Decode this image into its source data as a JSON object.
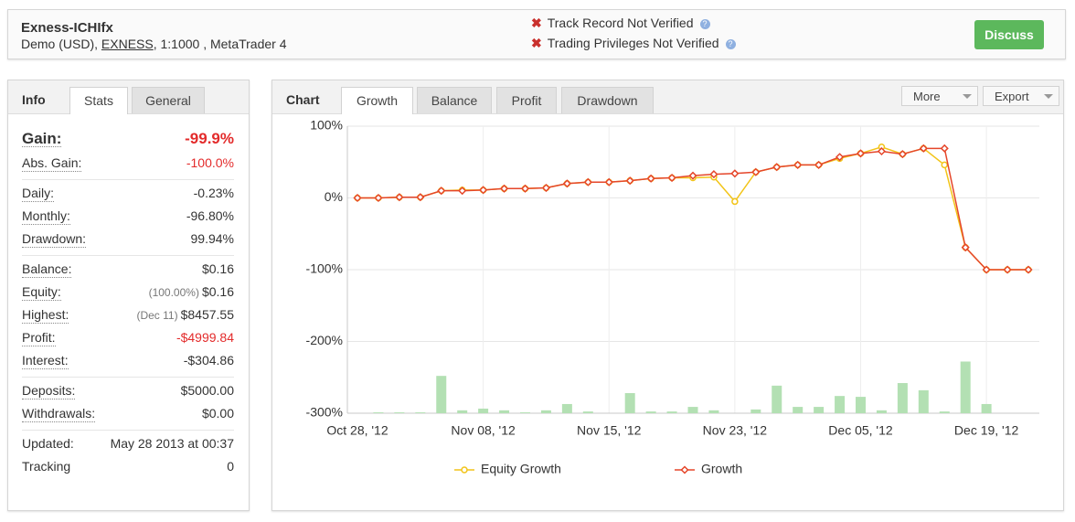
{
  "header": {
    "title": "Exness-ICHIfx",
    "subtitle_prefix": "Demo (USD),",
    "broker": "EXNESS",
    "subtitle_suffix": ", 1:1000 , MetaTrader 4",
    "verification": [
      "Track Record Not Verified",
      "Trading Privileges Not Verified"
    ],
    "button": "Discuss"
  },
  "info_panel": {
    "tabs": [
      "Info",
      "Stats",
      "General"
    ],
    "groups": [
      {
        "dotted": true,
        "rows": [
          {
            "label": "Gain:",
            "value": "-99.9%",
            "color": "#e32b2b",
            "emphasis": true
          },
          {
            "label": "Abs. Gain:",
            "value": "-100.0%",
            "color": "#e32b2b"
          }
        ]
      },
      {
        "dotted": true,
        "rows": [
          {
            "label": "Daily:",
            "value": "-0.23%"
          },
          {
            "label": "Monthly:",
            "value": "-96.80%"
          },
          {
            "label": "Drawdown:",
            "value": "99.94%"
          }
        ]
      },
      {
        "dotted": true,
        "rows": [
          {
            "label": "Balance:",
            "value": "$0.16"
          },
          {
            "label": "Equity:",
            "note": "(100.00%)",
            "value": "$0.16"
          },
          {
            "label": "Highest:",
            "note": "(Dec 11)",
            "value": "$8457.55"
          },
          {
            "label": "Profit:",
            "value": "-$4999.84",
            "color": "#e32b2b"
          },
          {
            "label": "Interest:",
            "value": "-$304.86"
          }
        ]
      },
      {
        "dotted": true,
        "rows": [
          {
            "label": "Deposits:",
            "value": "$5000.00"
          },
          {
            "label": "Withdrawals:",
            "value": "$0.00"
          }
        ]
      },
      {
        "dotted": false,
        "rows": [
          {
            "label": "Updated:",
            "value": "May 28 2013 at 00:37"
          },
          {
            "label": "Tracking",
            "value": "0"
          }
        ]
      }
    ]
  },
  "chart_panel": {
    "tabs": [
      "Chart",
      "Growth",
      "Balance",
      "Profit",
      "Drawdown"
    ],
    "menus": [
      "More",
      "Export"
    ]
  },
  "chart_data": {
    "type": "line",
    "categories": [
      "Oct 28, '12",
      null,
      null,
      null,
      null,
      null,
      "Nov 08, '12",
      null,
      null,
      null,
      null,
      null,
      "Nov 15, '12",
      null,
      null,
      null,
      null,
      null,
      "Nov 23, '12",
      null,
      null,
      null,
      null,
      null,
      "Dec 05, '12",
      null,
      null,
      null,
      null,
      null,
      "Dec 19, '12",
      null,
      null
    ],
    "series": [
      {
        "name": "Equity Growth",
        "color": "#f2c418",
        "marker": "circle",
        "values": [
          0,
          0,
          1,
          1,
          10,
          11,
          11,
          13,
          13,
          14,
          20,
          22,
          22,
          24,
          27,
          28,
          28,
          29,
          -5,
          36,
          43,
          46,
          46,
          55,
          62,
          71,
          61,
          69,
          46,
          -69,
          -100,
          -100,
          -100
        ]
      },
      {
        "name": "Growth",
        "color": "#e5462a",
        "marker": "diamond",
        "values": [
          0,
          0,
          1,
          1,
          10,
          10,
          11,
          13,
          13,
          14,
          20,
          22,
          22,
          24,
          27,
          28,
          31,
          33,
          34,
          36,
          43,
          46,
          46,
          57,
          62,
          65,
          61,
          69,
          69,
          -69,
          -100,
          -100,
          -100
        ]
      }
    ],
    "bars": {
      "color": "#b3e0b3",
      "values": [
        0,
        0.3,
        0.3,
        0.3,
        13,
        1,
        1.6,
        1,
        0.3,
        1,
        3.2,
        0.6,
        0,
        7,
        0.6,
        0.6,
        2.2,
        1,
        0,
        1.3,
        9.6,
        2.2,
        2.2,
        6,
        5.7,
        1,
        10.5,
        8,
        0.6,
        18,
        3.2,
        0,
        0
      ]
    },
    "ylim": [
      -300,
      100
    ],
    "yticks": [
      {
        "value": -300,
        "label": "-300%"
      },
      {
        "value": -200,
        "label": "-200%"
      },
      {
        "value": -100,
        "label": "-100%"
      },
      {
        "value": 0,
        "label": "0%"
      },
      {
        "value": 100,
        "label": "100%"
      }
    ],
    "y2lim": [
      0,
      100
    ],
    "grid": true
  }
}
